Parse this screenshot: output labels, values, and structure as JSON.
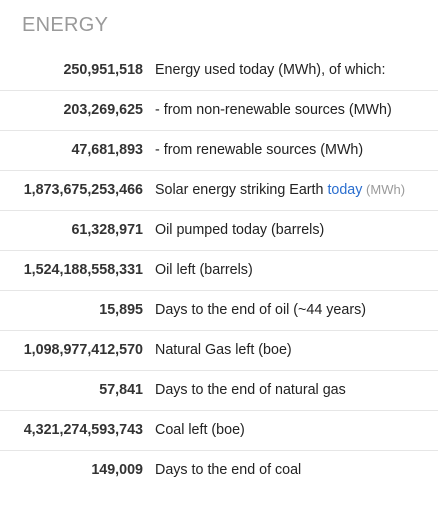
{
  "section": {
    "title": "ENERGY"
  },
  "rows": [
    {
      "value": "250,951,518",
      "label": "Energy used today (MWh), of which:"
    },
    {
      "value": "203,269,625",
      "label": "- from non-renewable sources (MWh)"
    },
    {
      "value": "47,681,893",
      "label": "- from renewable sources (MWh)"
    },
    {
      "value": "1,873,675,253,466",
      "label_prefix": "Solar energy striking Earth ",
      "label_link": "today",
      "label_suffix": " (MWh)"
    },
    {
      "value": "61,328,971",
      "label": "Oil pumped today (barrels)"
    },
    {
      "value": "1,524,188,558,331",
      "label": "Oil left (barrels)"
    },
    {
      "value": "15,895",
      "label": "Days to the end of oil (~44 years)"
    },
    {
      "value": "1,098,977,412,570",
      "label": "Natural Gas left (boe)"
    },
    {
      "value": "57,841",
      "label": "Days to the end of natural gas"
    },
    {
      "value": "4,321,274,593,743",
      "label": "Coal left (boe)"
    },
    {
      "value": "149,009",
      "label": "Days to the end of coal"
    }
  ]
}
